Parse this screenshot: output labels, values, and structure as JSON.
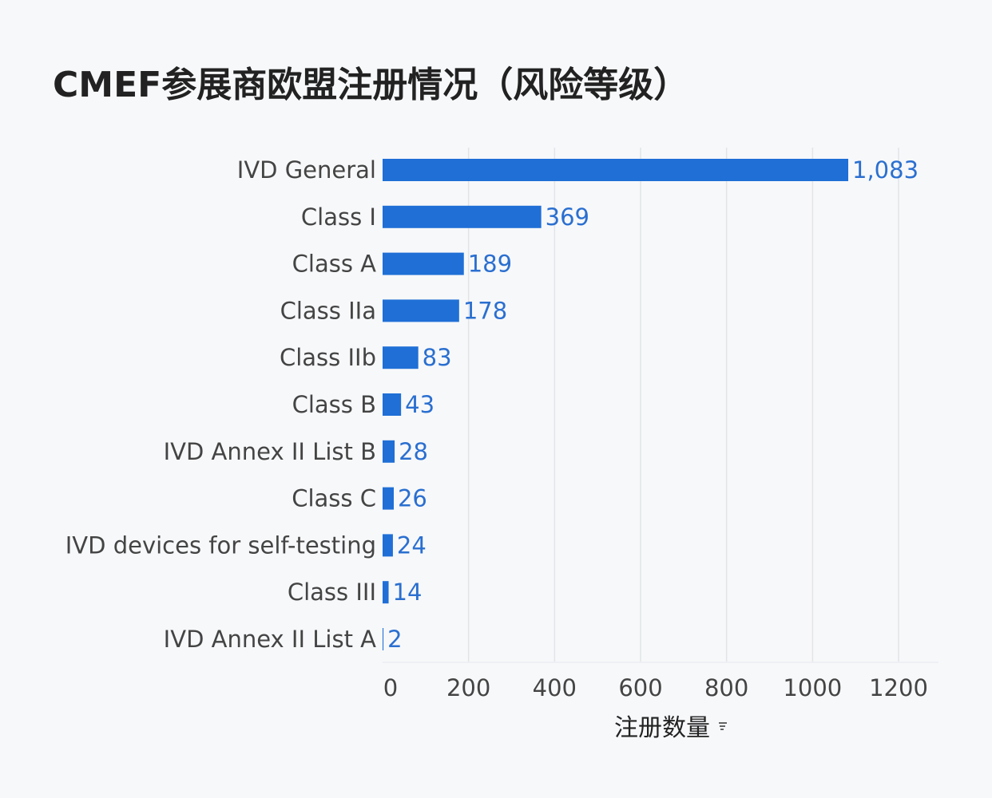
{
  "title": "CMEF参展商欧盟注册情况（风险等级）",
  "chart_data": {
    "type": "bar",
    "orientation": "horizontal",
    "categories": [
      "IVD General",
      "Class I",
      "Class A",
      "Class IIa",
      "Class IIb",
      "Class B",
      "IVD Annex II List B",
      "Class C",
      "IVD devices for self-testing",
      "Class III",
      "IVD Annex II List A"
    ],
    "values": [
      1083,
      369,
      189,
      178,
      83,
      43,
      28,
      26,
      24,
      14,
      2
    ],
    "value_labels": [
      "1,083",
      "369",
      "189",
      "178",
      "83",
      "43",
      "28",
      "26",
      "24",
      "14",
      "2"
    ],
    "xlabel": "注册数量",
    "ylabel": "",
    "xlim": [
      0,
      1200
    ],
    "ticks": [
      "0",
      "200",
      "400",
      "600",
      "800",
      "1000",
      "1200"
    ],
    "grid": true,
    "bar_color": "#1f6fd6",
    "label_color": "#2a6fd0"
  }
}
